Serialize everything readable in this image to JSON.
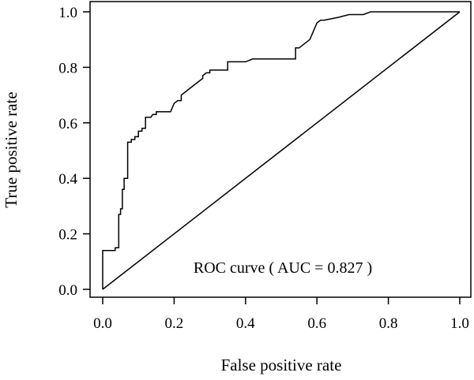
{
  "chart_data": {
    "type": "line",
    "xlabel": "False positive rate",
    "ylabel": "True positive rate",
    "xlim": [
      0,
      1
    ],
    "ylim": [
      0,
      1
    ],
    "x_ticks": [
      "0.0",
      "0.2",
      "0.4",
      "0.6",
      "0.8",
      "1.0"
    ],
    "y_ticks": [
      "0.0",
      "0.2",
      "0.4",
      "0.6",
      "0.8",
      "1.0"
    ],
    "annotation": "ROC curve ( AUC = 0.827 )",
    "grid": false,
    "series": [
      {
        "values": [
          [
            0.0,
            0.0
          ],
          [
            0.0,
            0.14
          ],
          [
            0.035,
            0.14
          ],
          [
            0.035,
            0.15
          ],
          [
            0.045,
            0.15
          ],
          [
            0.045,
            0.27
          ],
          [
            0.05,
            0.27
          ],
          [
            0.05,
            0.29
          ],
          [
            0.055,
            0.29
          ],
          [
            0.055,
            0.36
          ],
          [
            0.06,
            0.36
          ],
          [
            0.06,
            0.4
          ],
          [
            0.07,
            0.4
          ],
          [
            0.07,
            0.53
          ],
          [
            0.08,
            0.53
          ],
          [
            0.08,
            0.54
          ],
          [
            0.09,
            0.54
          ],
          [
            0.09,
            0.55
          ],
          [
            0.1,
            0.55
          ],
          [
            0.1,
            0.57
          ],
          [
            0.11,
            0.57
          ],
          [
            0.11,
            0.58
          ],
          [
            0.12,
            0.58
          ],
          [
            0.12,
            0.62
          ],
          [
            0.135,
            0.62
          ],
          [
            0.14,
            0.63
          ],
          [
            0.15,
            0.63
          ],
          [
            0.15,
            0.64
          ],
          [
            0.19,
            0.64
          ],
          [
            0.2,
            0.67
          ],
          [
            0.21,
            0.68
          ],
          [
            0.22,
            0.68
          ],
          [
            0.22,
            0.7
          ],
          [
            0.23,
            0.71
          ],
          [
            0.25,
            0.73
          ],
          [
            0.27,
            0.75
          ],
          [
            0.28,
            0.76
          ],
          [
            0.28,
            0.77
          ],
          [
            0.29,
            0.78
          ],
          [
            0.3,
            0.78
          ],
          [
            0.3,
            0.79
          ],
          [
            0.35,
            0.79
          ],
          [
            0.35,
            0.82
          ],
          [
            0.4,
            0.82
          ],
          [
            0.42,
            0.83
          ],
          [
            0.54,
            0.83
          ],
          [
            0.54,
            0.87
          ],
          [
            0.55,
            0.87
          ],
          [
            0.56,
            0.88
          ],
          [
            0.57,
            0.89
          ],
          [
            0.58,
            0.9
          ],
          [
            0.59,
            0.93
          ],
          [
            0.6,
            0.96
          ],
          [
            0.61,
            0.97
          ],
          [
            0.62,
            0.97
          ],
          [
            0.66,
            0.98
          ],
          [
            0.69,
            0.99
          ],
          [
            0.73,
            0.99
          ],
          [
            0.75,
            1.0
          ],
          [
            1.0,
            1.0
          ]
        ]
      },
      {
        "values": [
          [
            0.0,
            0.0
          ],
          [
            1.0,
            1.0
          ]
        ]
      }
    ]
  }
}
